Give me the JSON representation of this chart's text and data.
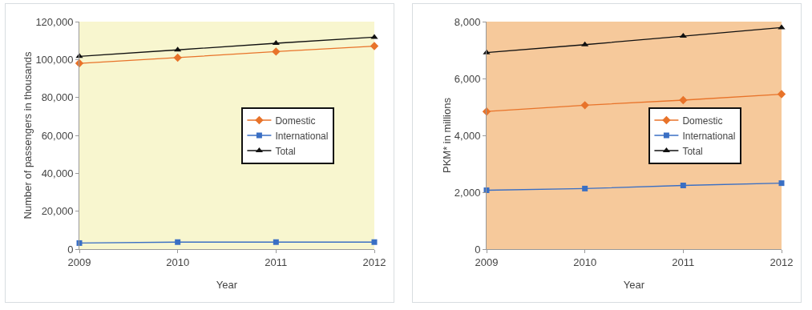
{
  "chart_data": [
    {
      "type": "line",
      "xlabel": "Year",
      "ylabel": "Number of passengers in thousands",
      "categories": [
        "2009",
        "2010",
        "2011",
        "2012"
      ],
      "ylim": [
        0,
        120000
      ],
      "yticks": [
        {
          "value": 0,
          "label": "0"
        },
        {
          "value": 20000,
          "label": "20,000"
        },
        {
          "value": 40000,
          "label": "40,000"
        },
        {
          "value": 60000,
          "label": "60,000"
        },
        {
          "value": 80000,
          "label": "80,000"
        },
        {
          "value": 100000,
          "label": "100,000"
        },
        {
          "value": 120000,
          "label": "120,000"
        }
      ],
      "grid": false,
      "legend": "right",
      "line_style": "solid",
      "series": [
        {
          "name": "Domestic",
          "color": "#e8732a",
          "marker": "diamond",
          "values": [
            98000,
            101000,
            104200,
            107100
          ]
        },
        {
          "name": "International",
          "color": "#3a6fc4",
          "marker": "square",
          "values": [
            3200,
            3700,
            3700,
            3700
          ]
        },
        {
          "name": "Total",
          "color": "#111111",
          "marker": "triangle",
          "values": [
            101700,
            105100,
            108600,
            111800
          ]
        }
      ]
    },
    {
      "type": "line",
      "xlabel": "Year",
      "ylabel": "PKM* in millions",
      "categories": [
        "2009",
        "2010",
        "2011",
        "2012"
      ],
      "ylim": [
        0,
        8000
      ],
      "yticks": [
        {
          "value": 0,
          "label": "0"
        },
        {
          "value": 2000,
          "label": "2,000"
        },
        {
          "value": 4000,
          "label": "4,000"
        },
        {
          "value": 6000,
          "label": "6,000"
        },
        {
          "value": 8000,
          "label": "8,000"
        }
      ],
      "grid": false,
      "legend": "right",
      "line_style": "solid",
      "series": [
        {
          "name": "Domestic",
          "color": "#e8732a",
          "marker": "diamond",
          "values": [
            4840,
            5060,
            5240,
            5450
          ]
        },
        {
          "name": "International",
          "color": "#3a6fc4",
          "marker": "square",
          "values": [
            2070,
            2130,
            2240,
            2320
          ]
        },
        {
          "name": "Total",
          "color": "#111111",
          "marker": "triangle",
          "values": [
            6910,
            7190,
            7490,
            7790
          ]
        }
      ]
    }
  ]
}
